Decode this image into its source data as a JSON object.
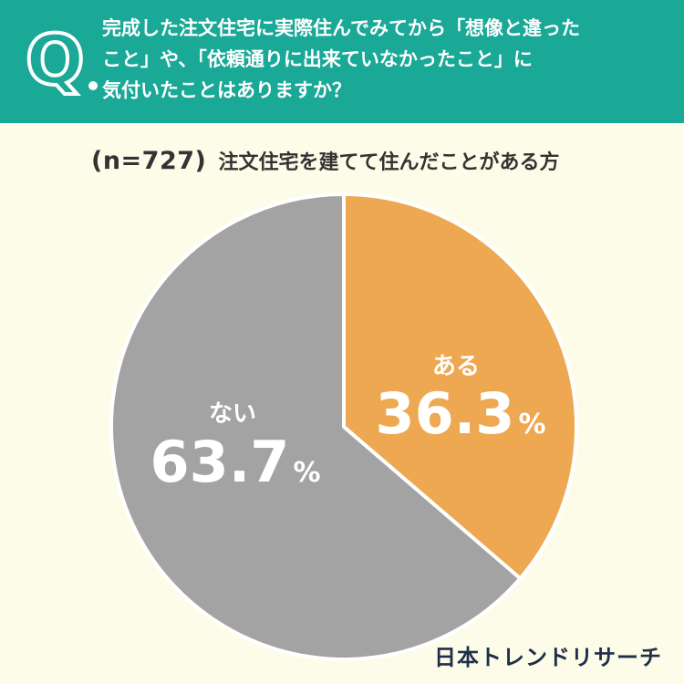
{
  "question": {
    "mark": "Q.",
    "lines": [
      "完成した注文住宅に実際住んでみてから「想像と違った",
      "こと」や、「依頼通りに出来ていなかったこと」に",
      "気付いたことはありますか？"
    ]
  },
  "sample": {
    "n": "(n=727)",
    "description": "注文住宅を建てて住んだことがある方"
  },
  "brand": "日本トレンドリサーチ",
  "colors": {
    "header": "#1aa897",
    "background": "#fdfce8",
    "aru": "#eda851",
    "nai": "#a3a3a3"
  },
  "chart_data": {
    "type": "pie",
    "title": "",
    "slices": [
      {
        "label": "ある",
        "value": 36.3,
        "display": "36.3",
        "color": "#eda851"
      },
      {
        "label": "ない",
        "value": 63.7,
        "display": "63.7",
        "color": "#a3a3a3"
      }
    ],
    "unit": "%",
    "start": "top",
    "direction": "clockwise"
  }
}
